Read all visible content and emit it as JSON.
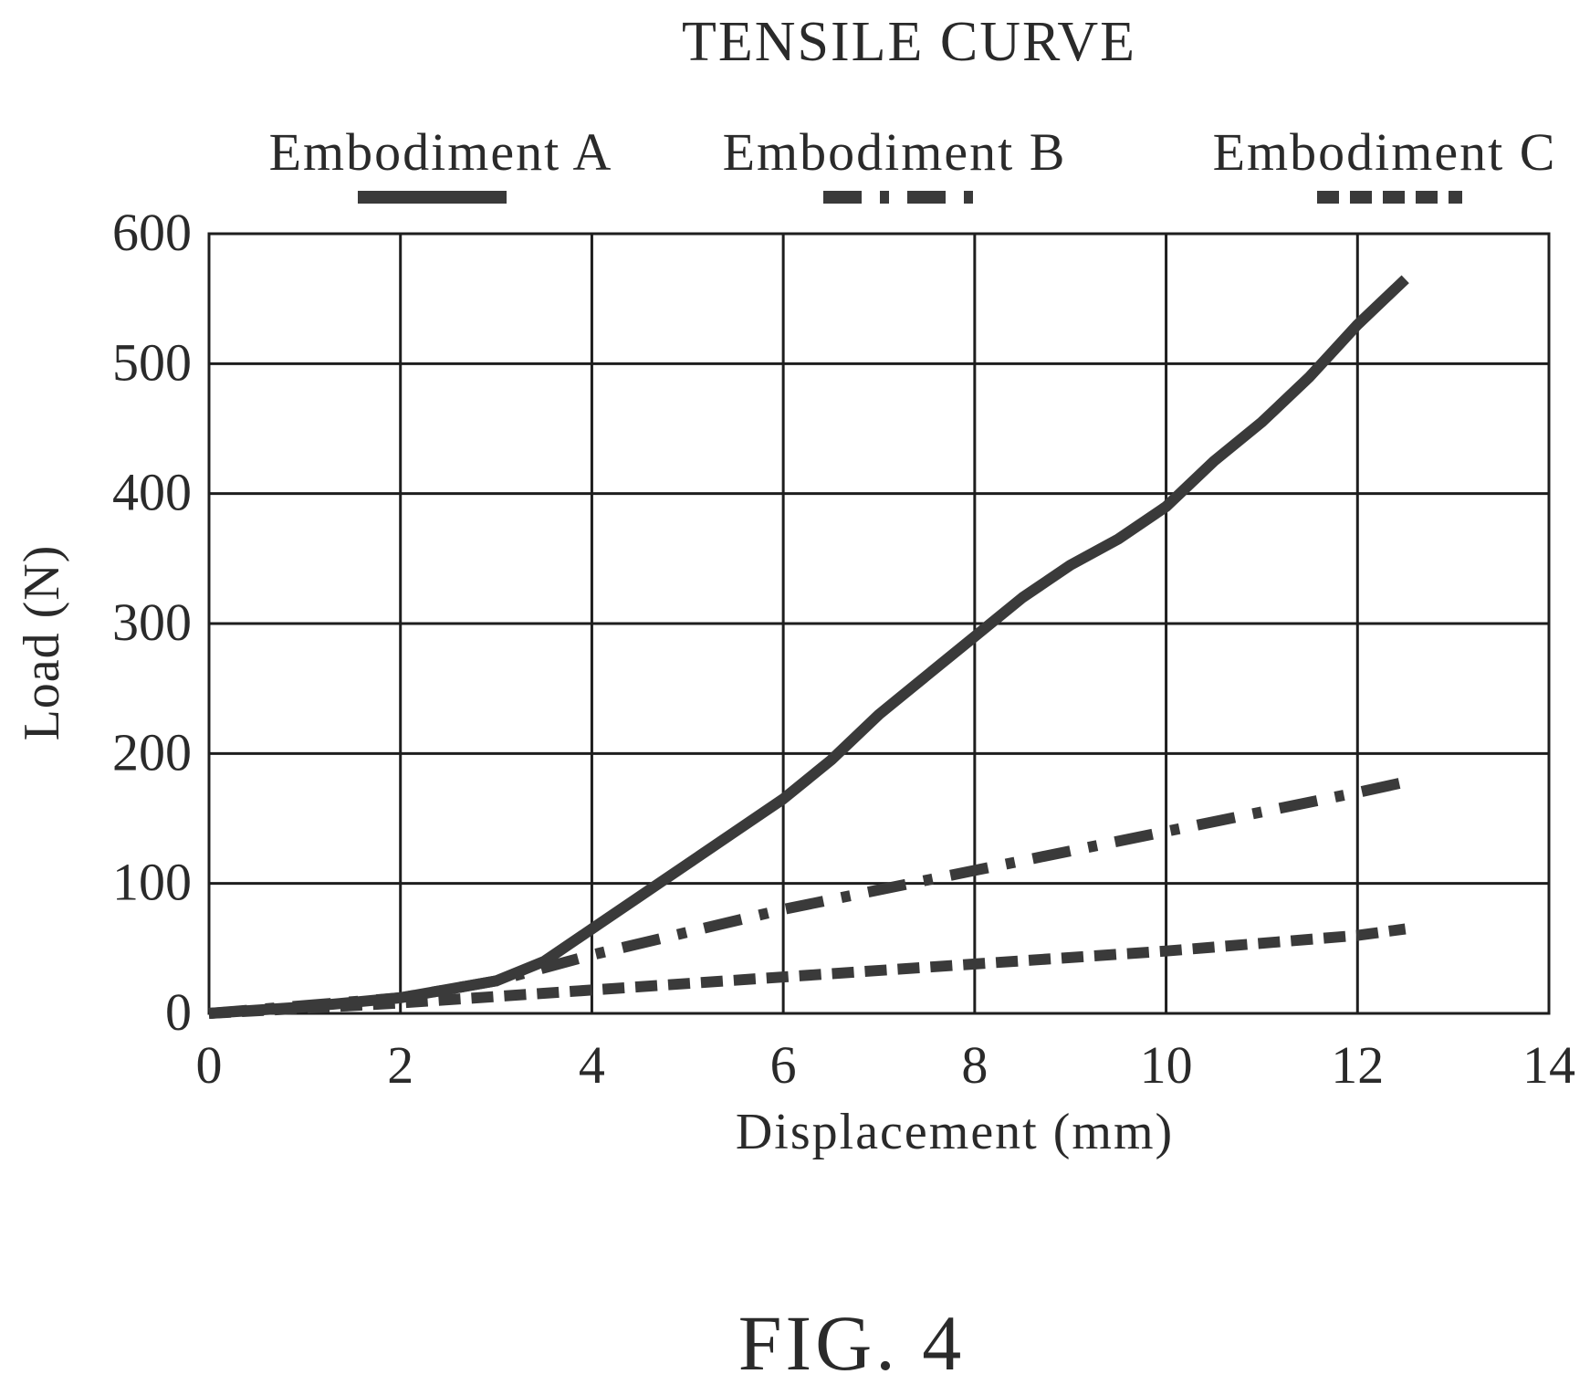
{
  "figure_label": "FIG. 4",
  "colors": {
    "ink": "#3a3a3a",
    "grid": "#1e1e1e",
    "background": "#ffffff"
  },
  "chart_data": {
    "type": "line",
    "title": "TENSILE CURVE",
    "xlabel": "Displacement (mm)",
    "ylabel": "Load (N)",
    "xlim": [
      0,
      14
    ],
    "ylim": [
      0,
      600
    ],
    "xticks": [
      0,
      2,
      4,
      6,
      8,
      10,
      12,
      14
    ],
    "yticks": [
      0,
      100,
      200,
      300,
      400,
      500,
      600
    ],
    "grid": true,
    "legend_position": "top",
    "series": [
      {
        "name": "Embodiment A",
        "style": "solid",
        "x": [
          0,
          1,
          2,
          3,
          3.5,
          4,
          4.5,
          5,
          5.5,
          6,
          6.5,
          7,
          7.5,
          8,
          8.5,
          9,
          9.5,
          10,
          10.5,
          11,
          11.5,
          12,
          12.5
        ],
        "y": [
          0,
          5,
          12,
          25,
          40,
          65,
          90,
          115,
          140,
          165,
          195,
          230,
          260,
          290,
          320,
          345,
          365,
          390,
          425,
          455,
          490,
          530,
          565
        ]
      },
      {
        "name": "Embodiment B",
        "style": "dashdot",
        "x": [
          0,
          2,
          3,
          4,
          6,
          8,
          10,
          12,
          12.5
        ],
        "y": [
          0,
          12,
          25,
          45,
          80,
          110,
          140,
          170,
          178
        ]
      },
      {
        "name": "Embodiment C",
        "style": "dashed",
        "x": [
          0,
          2,
          4,
          6,
          8,
          10,
          12,
          12.5
        ],
        "y": [
          0,
          8,
          18,
          28,
          38,
          48,
          60,
          65
        ]
      }
    ]
  }
}
